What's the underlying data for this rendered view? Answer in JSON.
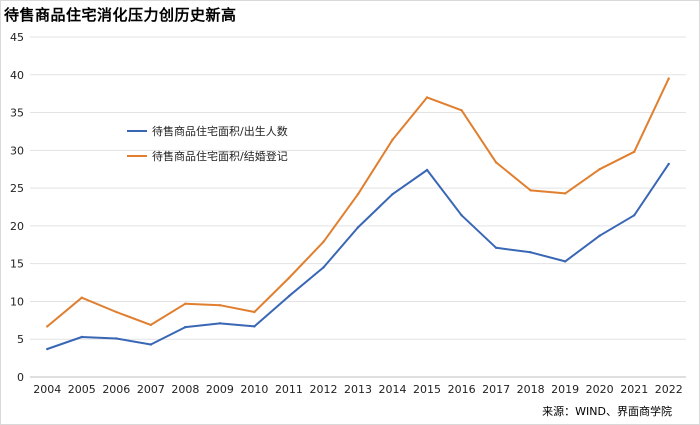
{
  "title": "待售商品住宅消化压力创历史新高",
  "source": "来源：WIND、界面商学院",
  "chart_data": {
    "type": "line",
    "title": "待售商品住宅消化压力创历史新高",
    "xlabel": "",
    "ylabel": "",
    "x": [
      "2004",
      "2005",
      "2006",
      "2007",
      "2008",
      "2009",
      "2010",
      "2011",
      "2012",
      "2013",
      "2014",
      "2015",
      "2016",
      "2017",
      "2018",
      "2019",
      "2020",
      "2021",
      "2022"
    ],
    "ylim": [
      0,
      45
    ],
    "yticks": [
      0,
      5,
      10,
      15,
      20,
      25,
      30,
      35,
      40,
      45
    ],
    "grid": true,
    "legend_position": "upper-left-inside",
    "series": [
      {
        "name": "待售商品住宅面积/出生人数",
        "color": "#3a67b5",
        "values": [
          3.7,
          5.3,
          5.1,
          4.3,
          6.6,
          7.1,
          6.7,
          10.7,
          14.5,
          19.8,
          24.2,
          27.4,
          21.4,
          17.1,
          16.5,
          15.3,
          18.7,
          21.4,
          28.2
        ]
      },
      {
        "name": "待售商品住宅面积/结婚登记",
        "color": "#e07f2f",
        "values": [
          6.7,
          10.5,
          8.6,
          6.9,
          9.7,
          9.5,
          8.6,
          13.1,
          17.9,
          24.2,
          31.4,
          37.0,
          35.3,
          28.4,
          24.7,
          24.3,
          27.5,
          29.8,
          39.5
        ]
      }
    ]
  }
}
